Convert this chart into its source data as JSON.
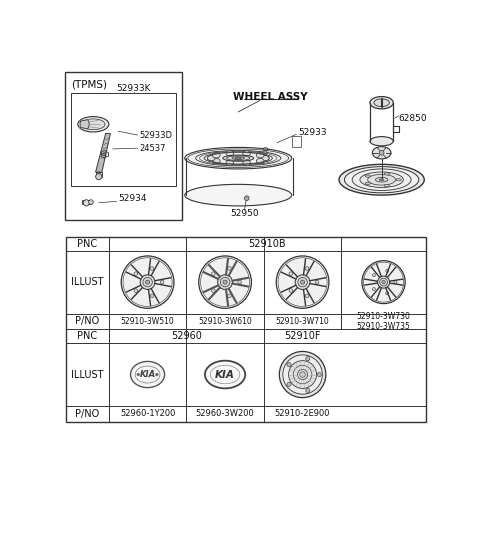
{
  "bg_color": "#ffffff",
  "line_color": "#333333",
  "tpms_box_label": "(TPMS)",
  "wheel_assy_label": "WHEEL ASSY",
  "pnc_row1": "52910B",
  "pnc_row2_left": "52960",
  "pnc_row2_right": "52910F",
  "pno_row1": [
    "52910-3W510",
    "52910-3W610",
    "52910-3W710",
    "52910-3W730\n52910-3W735"
  ],
  "pno_row2": [
    "52960-1Y200",
    "52960-3W200",
    "52910-2E900"
  ],
  "label_52933K": "52933K",
  "label_52933D": "52933D",
  "label_24537": "24537",
  "label_52934": "52934",
  "label_52933": "52933",
  "label_52950": "52950",
  "label_62850": "62850"
}
